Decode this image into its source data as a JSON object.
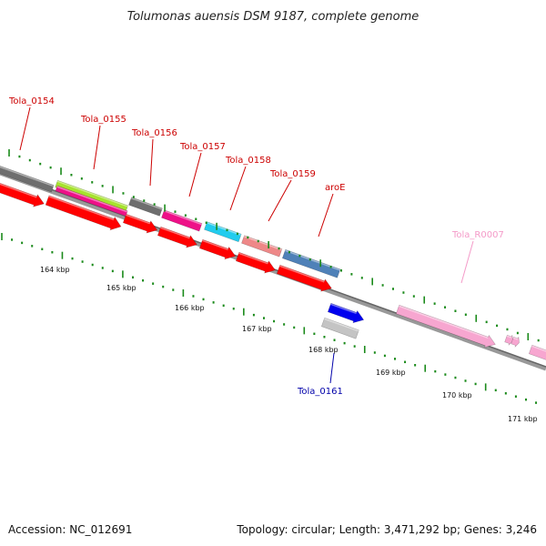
{
  "title": "Tolumonas auensis DSM 9187, complete genome",
  "footer": {
    "accession": "Accession: NC_012691",
    "topology": "Topology: circular; Length: 3,471,292 bp; Genes: 3,246"
  },
  "gene_labels": [
    {
      "text": "Tola_0154",
      "color": "#cc0000"
    },
    {
      "text": "Tola_0155",
      "color": "#cc0000"
    },
    {
      "text": "Tola_0156",
      "color": "#cc0000"
    },
    {
      "text": "Tola_0157",
      "color": "#cc0000"
    },
    {
      "text": "Tola_0158",
      "color": "#cc0000"
    },
    {
      "text": "Tola_0159",
      "color": "#cc0000"
    },
    {
      "text": "aroE",
      "color": "#cc0000"
    },
    {
      "text": "Tola_R0007",
      "color": "#f49ac8"
    },
    {
      "text": "Tola_0161",
      "color": "#0000aa"
    }
  ],
  "kbp_labels": [
    "164 kbp",
    "165 kbp",
    "166 kbp",
    "167 kbp",
    "168 kbp",
    "169 kbp",
    "170 kbp",
    "171 kbp"
  ],
  "colors": {
    "backbone": "#888888",
    "cds_red": "#ff0000",
    "tick_green": "#1a8a1a",
    "gray": "#6e6e6e",
    "lime": "#a6e22e",
    "magenta": "#ee1188",
    "cyan": "#22ccee",
    "salmon": "#ee8888",
    "steel": "#4f81b8",
    "pink": "#f7a6d0",
    "blue": "#0000ee",
    "silver": "#c4c4c4"
  }
}
